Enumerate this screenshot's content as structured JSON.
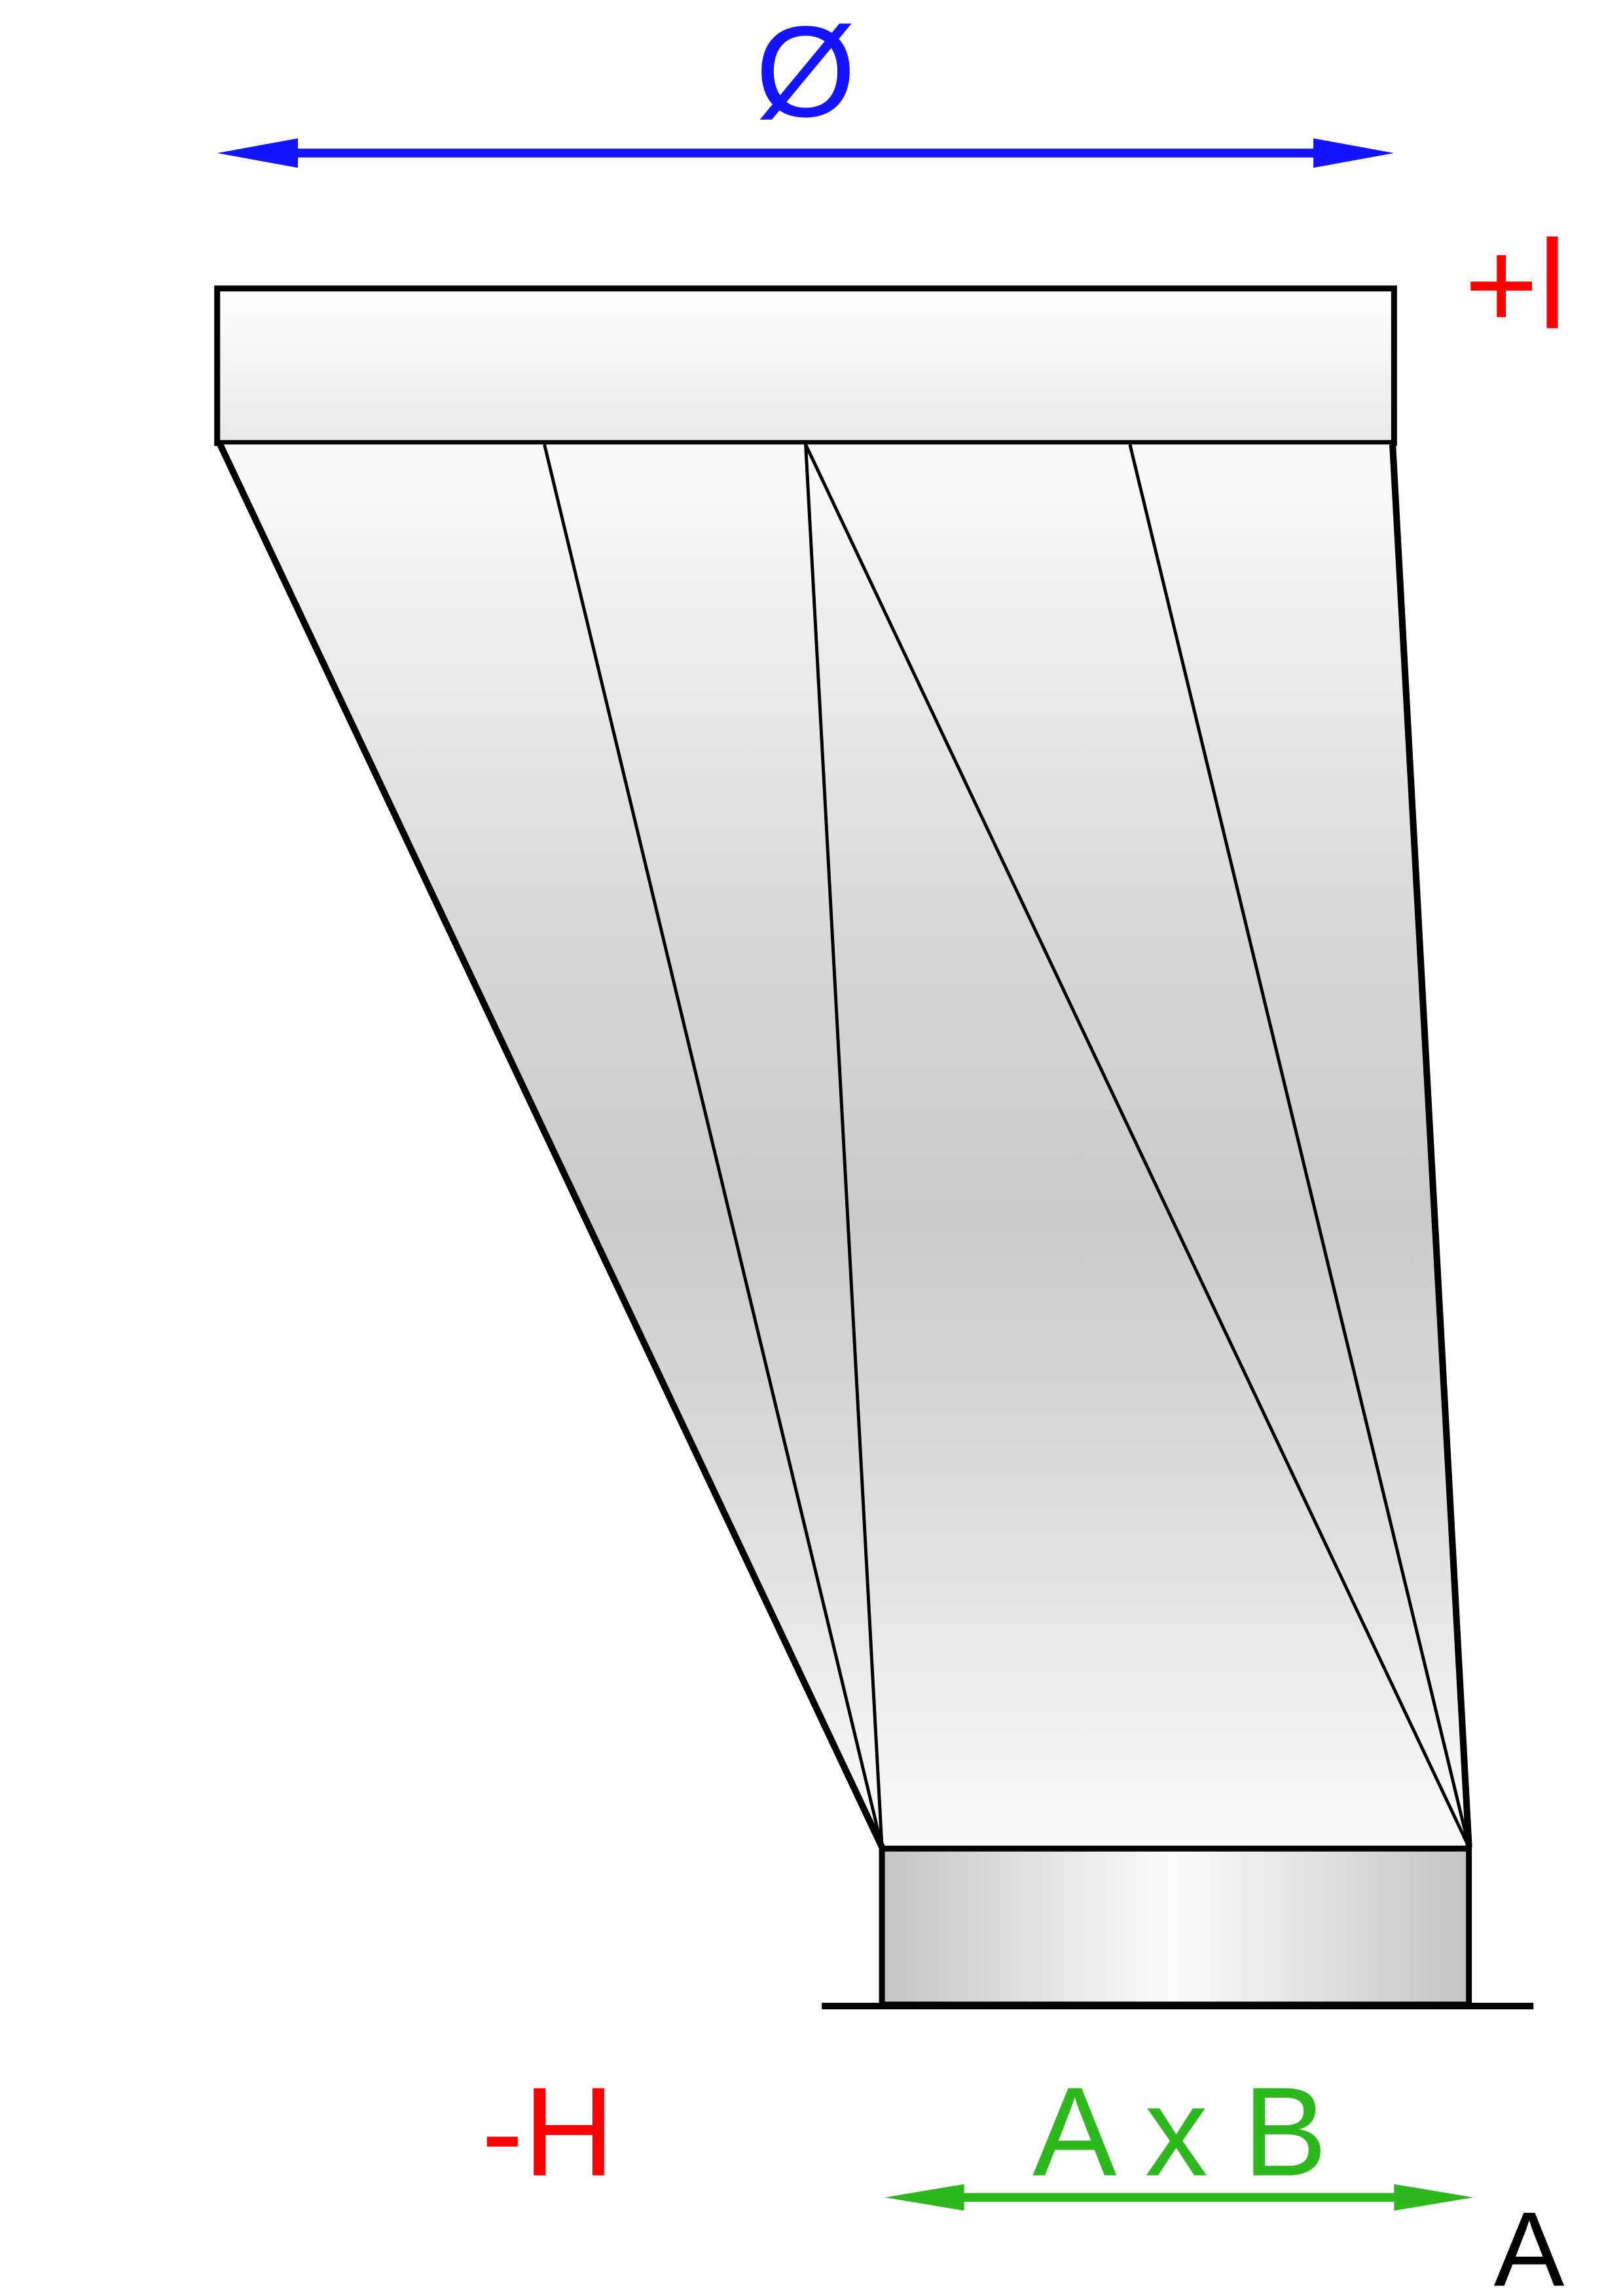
{
  "labels": {
    "diameter": "Ø",
    "plus_l": "+l",
    "minus_h": "-H",
    "a_x_b": "A x B",
    "a": "A"
  },
  "colors": {
    "diameter": "#1414ff",
    "offset": "#ff0000",
    "rect": "#2db81e",
    "outline": "#000000",
    "fill_light": "#fbfbfc",
    "fill_dark": "#c9cacc"
  }
}
